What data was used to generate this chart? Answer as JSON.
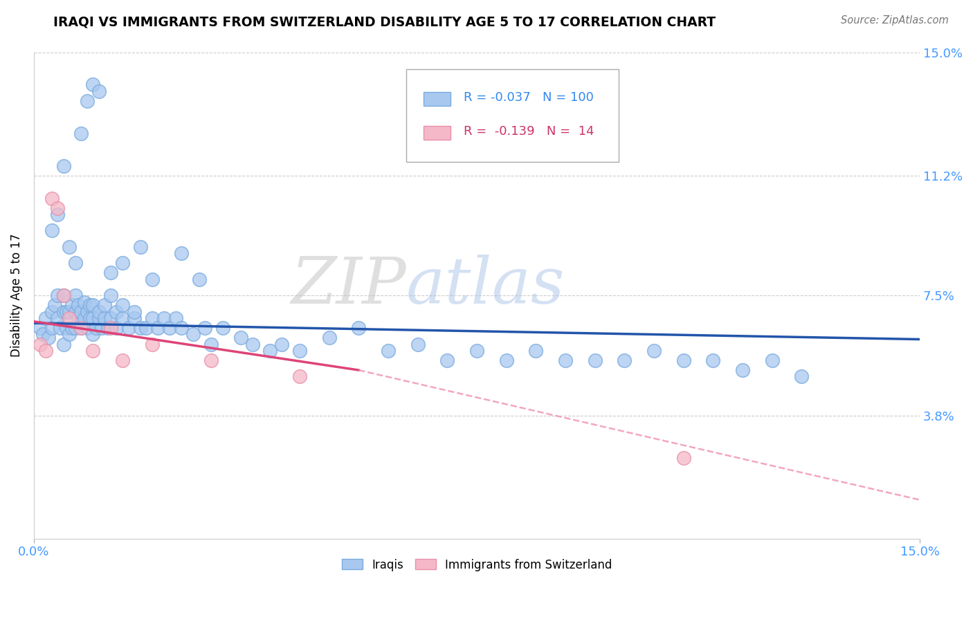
{
  "title": "IRAQI VS IMMIGRANTS FROM SWITZERLAND DISABILITY AGE 5 TO 17 CORRELATION CHART",
  "source": "Source: ZipAtlas.com",
  "ylabel": "Disability Age 5 to 17",
  "xlim": [
    0.0,
    15.0
  ],
  "ylim": [
    0.0,
    15.0
  ],
  "x_tick_labels": [
    "0.0%",
    "15.0%"
  ],
  "x_ticks": [
    0.0,
    15.0
  ],
  "y_tick_labels": [
    "3.8%",
    "7.5%",
    "11.2%",
    "15.0%"
  ],
  "y_ticks": [
    3.8,
    7.5,
    11.2,
    15.0
  ],
  "iraqis_R": -0.037,
  "iraqis_N": 100,
  "swiss_R": -0.139,
  "swiss_N": 14,
  "iraqis_color": "#a8c8f0",
  "swiss_color": "#f5b8c8",
  "iraqis_edge_color": "#7aabde",
  "swiss_edge_color": "#e890aa",
  "iraqis_line_color": "#2255aa",
  "swiss_line_solid_color": "#dd4477",
  "swiss_line_dash_color": "#f090b0",
  "background_color": "#ffffff",
  "watermark_color_zip": "#c8c8c8",
  "watermark_color_atlas": "#b0c8e8",
  "iraqis_x": [
    0.1,
    0.15,
    0.2,
    0.25,
    0.3,
    0.3,
    0.35,
    0.4,
    0.4,
    0.45,
    0.5,
    0.5,
    0.5,
    0.55,
    0.55,
    0.6,
    0.6,
    0.65,
    0.65,
    0.7,
    0.7,
    0.7,
    0.75,
    0.75,
    0.8,
    0.8,
    0.85,
    0.85,
    0.9,
    0.9,
    0.95,
    0.95,
    1.0,
    1.0,
    1.0,
    1.05,
    1.1,
    1.1,
    1.15,
    1.2,
    1.2,
    1.25,
    1.3,
    1.3,
    1.4,
    1.4,
    1.5,
    1.5,
    1.6,
    1.7,
    1.7,
    1.8,
    1.9,
    2.0,
    2.1,
    2.2,
    2.3,
    2.4,
    2.5,
    2.7,
    2.9,
    3.0,
    3.2,
    3.5,
    3.7,
    4.0,
    4.2,
    4.5,
    5.0,
    5.5,
    6.0,
    6.5,
    7.0,
    7.5,
    8.0,
    8.5,
    9.0,
    9.5,
    10.0,
    10.5,
    11.0,
    11.5,
    12.0,
    12.5,
    13.0,
    0.3,
    0.4,
    0.5,
    0.6,
    0.7,
    0.8,
    0.9,
    1.0,
    1.1,
    1.3,
    1.5,
    1.8,
    2.0,
    2.5,
    2.8
  ],
  "iraqis_y": [
    6.5,
    6.3,
    6.8,
    6.2,
    7.0,
    6.5,
    7.2,
    6.8,
    7.5,
    6.5,
    7.0,
    6.0,
    7.5,
    6.5,
    7.0,
    6.3,
    7.0,
    6.5,
    7.2,
    6.5,
    7.0,
    7.5,
    6.8,
    7.2,
    6.5,
    7.0,
    6.8,
    7.3,
    6.5,
    7.0,
    6.8,
    7.2,
    6.3,
    6.8,
    7.2,
    6.5,
    6.8,
    7.0,
    6.5,
    6.8,
    7.2,
    6.5,
    6.8,
    7.5,
    6.5,
    7.0,
    6.8,
    7.2,
    6.5,
    6.8,
    7.0,
    6.5,
    6.5,
    6.8,
    6.5,
    6.8,
    6.5,
    6.8,
    6.5,
    6.3,
    6.5,
    6.0,
    6.5,
    6.2,
    6.0,
    5.8,
    6.0,
    5.8,
    6.2,
    6.5,
    5.8,
    6.0,
    5.5,
    5.8,
    5.5,
    5.8,
    5.5,
    5.5,
    5.5,
    5.8,
    5.5,
    5.5,
    5.2,
    5.5,
    5.0,
    9.5,
    10.0,
    11.5,
    9.0,
    8.5,
    12.5,
    13.5,
    14.0,
    13.8,
    8.2,
    8.5,
    9.0,
    8.0,
    8.8,
    8.0
  ],
  "swiss_x": [
    0.1,
    0.2,
    0.3,
    0.4,
    0.5,
    0.6,
    0.8,
    1.0,
    1.3,
    1.5,
    2.0,
    3.0,
    4.5,
    11.0
  ],
  "swiss_y": [
    6.0,
    5.8,
    10.5,
    10.2,
    7.5,
    6.8,
    6.5,
    5.8,
    6.5,
    5.5,
    6.0,
    5.5,
    5.0,
    2.5
  ],
  "iraqis_line_x0": 0.0,
  "iraqis_line_x1": 15.0,
  "iraqis_line_y0": 6.65,
  "iraqis_line_y1": 6.15,
  "swiss_line_solid_x0": 0.0,
  "swiss_line_solid_x1": 5.5,
  "swiss_line_solid_y0": 6.7,
  "swiss_line_solid_y1": 5.2,
  "swiss_line_dash_x0": 5.5,
  "swiss_line_dash_x1": 15.0,
  "swiss_line_dash_y0": 5.2,
  "swiss_line_dash_y1": 1.2
}
